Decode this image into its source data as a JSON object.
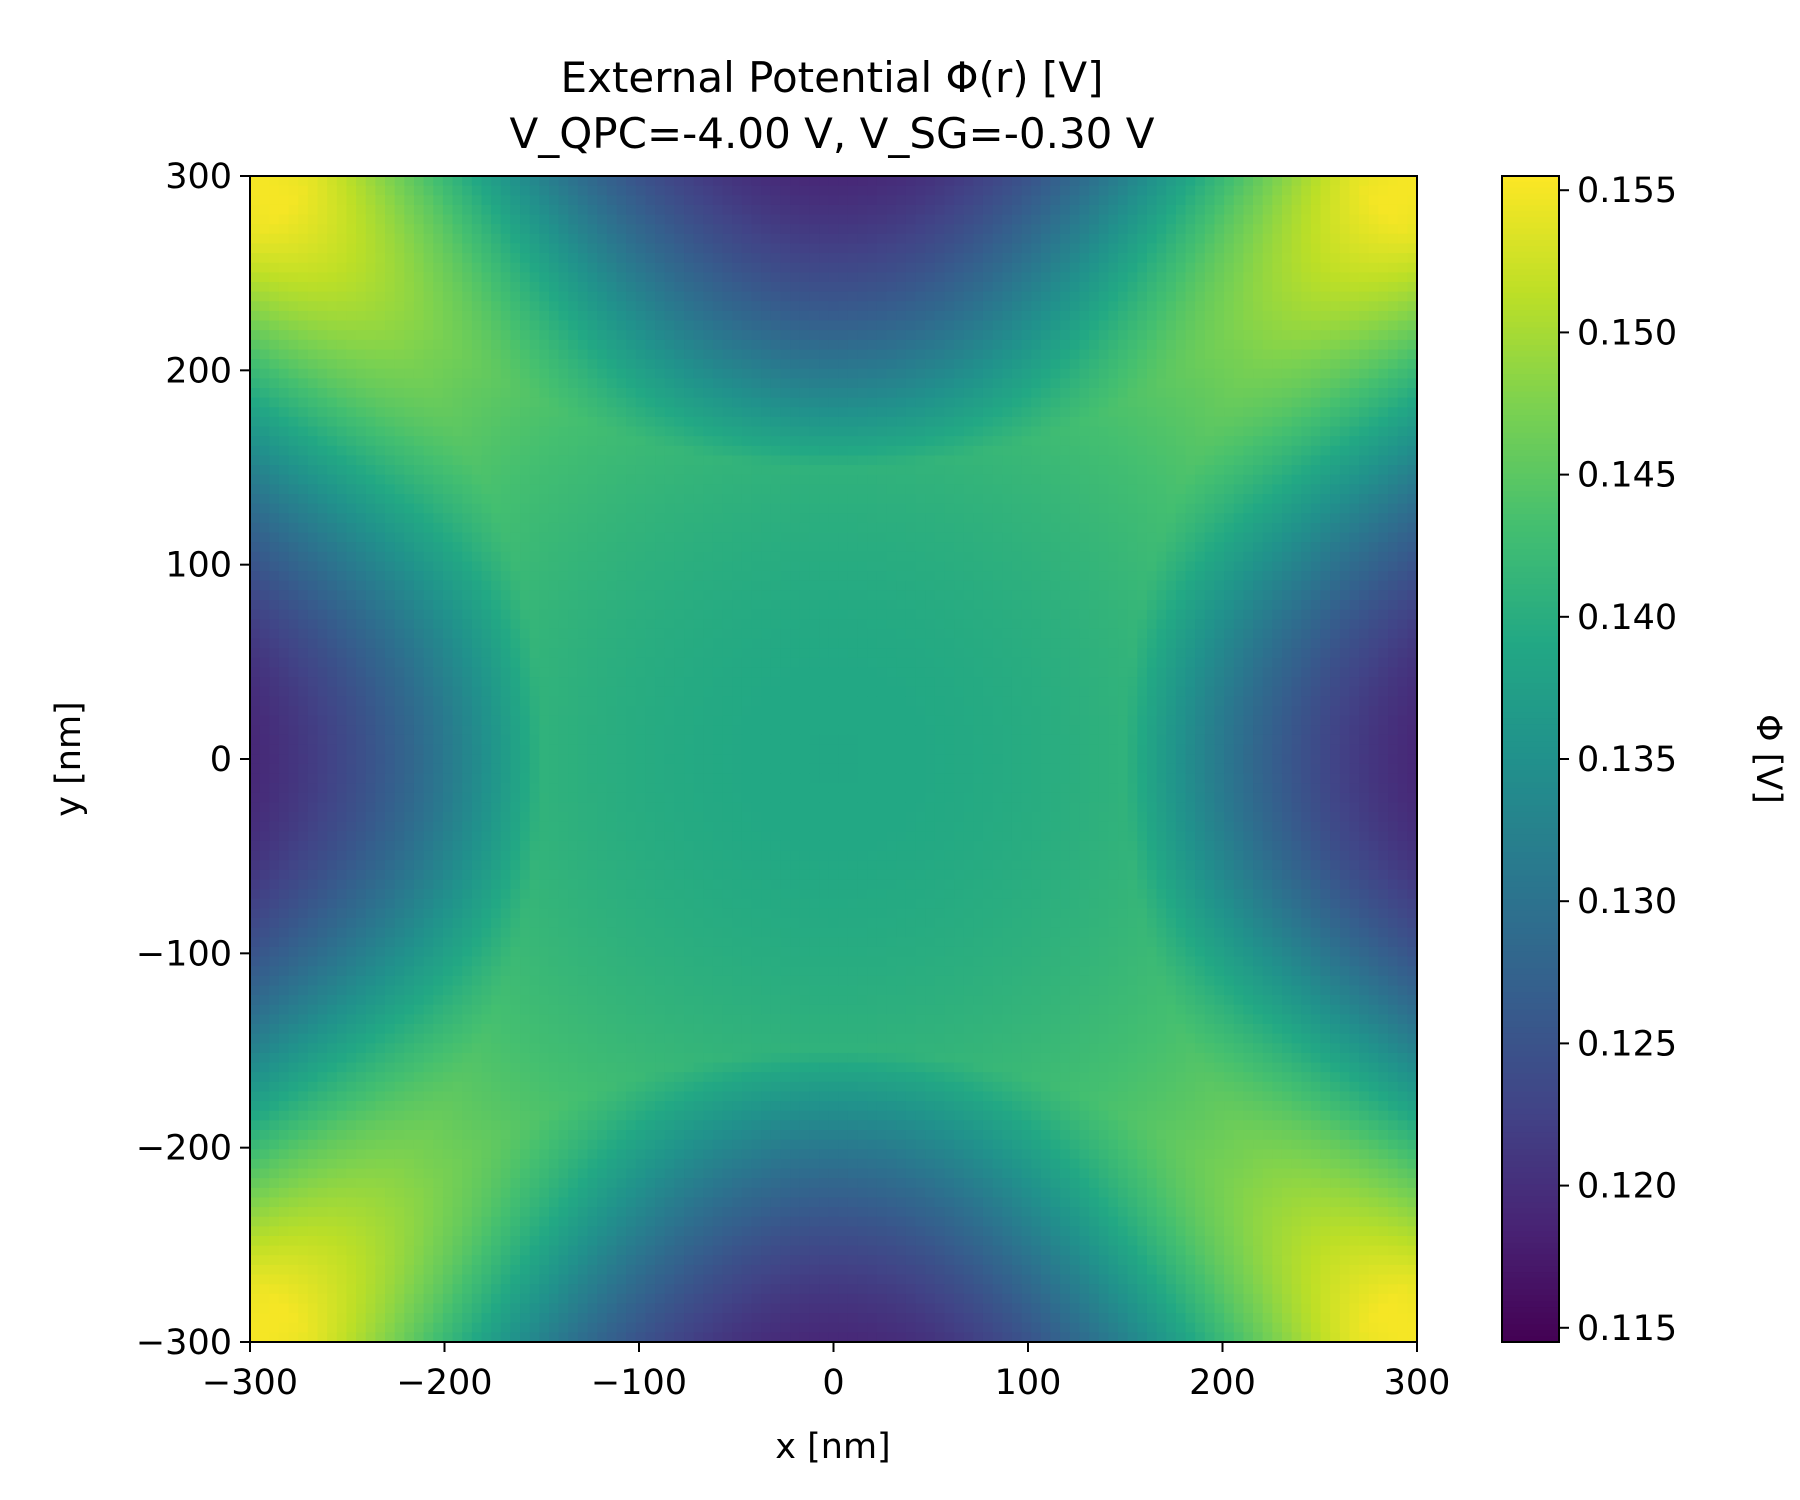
{
  "chart_data": {
    "type": "heatmap",
    "title": "External Potential Φ(r) [V]",
    "subtitle": "V_QPC=-4.00 V, V_SG=-0.30 V",
    "xlabel": "x [nm]",
    "ylabel": "y [nm]",
    "xlim": [
      -300,
      300
    ],
    "ylim": [
      -300,
      300
    ],
    "xticks": [
      -300,
      -200,
      -100,
      0,
      100,
      200,
      300
    ],
    "yticks": [
      -300,
      -200,
      -100,
      0,
      100,
      200,
      300
    ],
    "xtick_labels": [
      "−300",
      "−200",
      "−100",
      "0",
      "100",
      "200",
      "300"
    ],
    "ytick_labels": [
      "−300",
      "−200",
      "−100",
      "0",
      "100",
      "200",
      "300"
    ],
    "colormap": "viridis",
    "colorbar": {
      "label": "Φ [V]",
      "range": [
        0.1145,
        0.1555
      ],
      "ticks": [
        0.115,
        0.12,
        0.125,
        0.13,
        0.135,
        0.14,
        0.145,
        0.15,
        0.155
      ],
      "tick_labels": [
        "0.115",
        "0.120",
        "0.125",
        "0.130",
        "0.135",
        "0.140",
        "0.145",
        "0.150",
        "0.155"
      ]
    },
    "grid": {
      "nx": 121,
      "ny": 121,
      "description_values": {
        "center_x0_y0": 0.139,
        "corners": 0.155,
        "left_right_edges_at_y0": 0.115,
        "top_bottom_edges_at_x0": 0.115
      }
    },
    "grid_visible": false
  }
}
